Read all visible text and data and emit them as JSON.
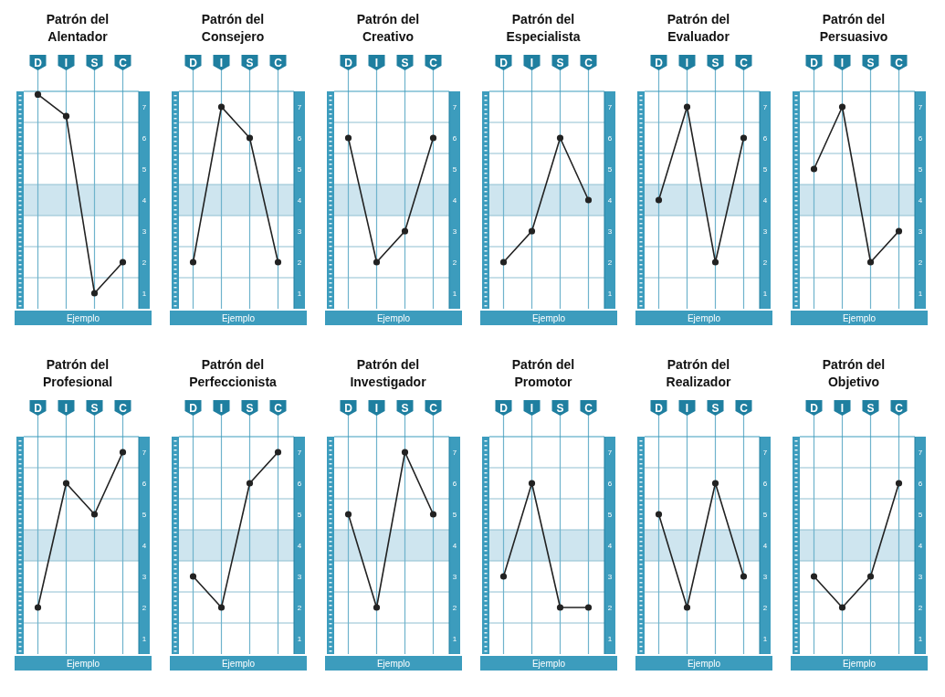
{
  "chart_data": [
    {
      "type": "line",
      "title": "Patrón del Alentador",
      "xlabel": "Ejemplo",
      "categories": [
        "D",
        "I",
        "S",
        "C"
      ],
      "series": [
        {
          "color": "#222222",
          "values": [
            7.4,
            6.7,
            1.0,
            2.0
          ]
        }
      ],
      "ylim": [
        0.5,
        7.5
      ],
      "yticks": [
        1,
        2,
        3,
        4,
        5,
        6,
        7,
        {
          "value": 1.5,
          "label": null
        },
        {
          "value": 2.5,
          "label": null
        },
        {
          "value": 3.5,
          "label": null
        },
        {
          "value": 4.5,
          "label": null
        },
        {
          "value": 5.5,
          "label": null
        },
        {
          "value": 6.5,
          "label": null
        }
      ],
      "bands": [
        {
          "axis": "y",
          "from": 3.5,
          "to": 4.5,
          "color": "#c6e1ec"
        }
      ],
      "grid": true,
      "marker": "circle",
      "line_style": "solid"
    },
    {
      "type": "line",
      "title": "Patrón del Consejero",
      "xlabel": "Ejemplo",
      "categories": [
        "D",
        "I",
        "S",
        "C"
      ],
      "series": [
        {
          "color": "#222222",
          "values": [
            2.0,
            7.0,
            6.0,
            2.0
          ]
        }
      ],
      "ylim": [
        0.5,
        7.5
      ],
      "yticks": [
        1,
        2,
        3,
        4,
        5,
        6,
        7,
        {
          "value": 1.5,
          "label": null
        },
        {
          "value": 2.5,
          "label": null
        },
        {
          "value": 3.5,
          "label": null
        },
        {
          "value": 4.5,
          "label": null
        },
        {
          "value": 5.5,
          "label": null
        },
        {
          "value": 6.5,
          "label": null
        }
      ],
      "bands": [
        {
          "axis": "y",
          "from": 3.5,
          "to": 4.5,
          "color": "#c6e1ec"
        }
      ],
      "grid": true,
      "marker": "circle",
      "line_style": "solid"
    },
    {
      "type": "line",
      "title": "Patrón del Creativo",
      "xlabel": "Ejemplo",
      "categories": [
        "D",
        "I",
        "S",
        "C"
      ],
      "series": [
        {
          "color": "#222222",
          "values": [
            6.0,
            2.0,
            3.0,
            6.0
          ]
        }
      ],
      "ylim": [
        0.5,
        7.5
      ],
      "yticks": [
        1,
        2,
        3,
        4,
        5,
        6,
        7,
        {
          "value": 1.5,
          "label": null
        },
        {
          "value": 2.5,
          "label": null
        },
        {
          "value": 3.5,
          "label": null
        },
        {
          "value": 4.5,
          "label": null
        },
        {
          "value": 5.5,
          "label": null
        },
        {
          "value": 6.5,
          "label": null
        }
      ],
      "bands": [
        {
          "axis": "y",
          "from": 3.5,
          "to": 4.5,
          "color": "#c6e1ec"
        }
      ],
      "grid": true,
      "marker": "circle",
      "line_style": "solid"
    },
    {
      "type": "line",
      "title": "Patrón del Especialista",
      "xlabel": "Ejemplo",
      "categories": [
        "D",
        "I",
        "S",
        "C"
      ],
      "series": [
        {
          "color": "#222222",
          "values": [
            2.0,
            3.0,
            6.0,
            4.0
          ]
        }
      ],
      "ylim": [
        0.5,
        7.5
      ],
      "yticks": [
        1,
        2,
        3,
        4,
        5,
        6,
        7,
        {
          "value": 1.5,
          "label": null
        },
        {
          "value": 2.5,
          "label": null
        },
        {
          "value": 3.5,
          "label": null
        },
        {
          "value": 4.5,
          "label": null
        },
        {
          "value": 5.5,
          "label": null
        },
        {
          "value": 6.5,
          "label": null
        }
      ],
      "bands": [
        {
          "axis": "y",
          "from": 3.5,
          "to": 4.5,
          "color": "#c6e1ec"
        }
      ],
      "grid": true,
      "marker": "circle",
      "line_style": "solid"
    },
    {
      "type": "line",
      "title": "Patrón del Evaluador",
      "xlabel": "Ejemplo",
      "categories": [
        "D",
        "I",
        "S",
        "C"
      ],
      "series": [
        {
          "color": "#222222",
          "values": [
            4.0,
            7.0,
            2.0,
            6.0
          ]
        }
      ],
      "ylim": [
        0.5,
        7.5
      ],
      "yticks": [
        1,
        2,
        3,
        4,
        5,
        6,
        7,
        {
          "value": 1.5,
          "label": null
        },
        {
          "value": 2.5,
          "label": null
        },
        {
          "value": 3.5,
          "label": null
        },
        {
          "value": 4.5,
          "label": null
        },
        {
          "value": 5.5,
          "label": null
        },
        {
          "value": 6.5,
          "label": null
        }
      ],
      "bands": [
        {
          "axis": "y",
          "from": 3.5,
          "to": 4.5,
          "color": "#c6e1ec"
        }
      ],
      "grid": true,
      "marker": "circle",
      "line_style": "solid"
    },
    {
      "type": "line",
      "title": "Patrón del Persuasivo",
      "xlabel": "Ejemplo",
      "categories": [
        "D",
        "I",
        "S",
        "C"
      ],
      "series": [
        {
          "color": "#222222",
          "values": [
            5.0,
            7.0,
            2.0,
            3.0
          ]
        }
      ],
      "ylim": [
        0.5,
        7.5
      ],
      "yticks": [
        1,
        2,
        3,
        4,
        5,
        6,
        7,
        {
          "value": 1.5,
          "label": null
        },
        {
          "value": 2.5,
          "label": null
        },
        {
          "value": 3.5,
          "label": null
        },
        {
          "value": 4.5,
          "label": null
        },
        {
          "value": 5.5,
          "label": null
        },
        {
          "value": 6.5,
          "label": null
        }
      ],
      "bands": [
        {
          "axis": "y",
          "from": 3.5,
          "to": 4.5,
          "color": "#c6e1ec"
        }
      ],
      "grid": true,
      "marker": "circle",
      "line_style": "solid"
    },
    {
      "type": "line",
      "title": "Patrón del Profesional",
      "xlabel": "Ejemplo",
      "categories": [
        "D",
        "I",
        "S",
        "C"
      ],
      "series": [
        {
          "color": "#222222",
          "values": [
            2.0,
            6.0,
            5.0,
            7.0
          ]
        }
      ],
      "ylim": [
        0.5,
        7.5
      ],
      "yticks": [
        1,
        2,
        3,
        4,
        5,
        6,
        7,
        {
          "value": 1.5,
          "label": null
        },
        {
          "value": 2.5,
          "label": null
        },
        {
          "value": 3.5,
          "label": null
        },
        {
          "value": 4.5,
          "label": null
        },
        {
          "value": 5.5,
          "label": null
        },
        {
          "value": 6.5,
          "label": null
        }
      ],
      "bands": [
        {
          "axis": "y",
          "from": 3.5,
          "to": 4.5,
          "color": "#c6e1ec"
        }
      ],
      "grid": true,
      "marker": "circle",
      "line_style": "solid"
    },
    {
      "type": "line",
      "title": "Patrón del Perfeccionista",
      "xlabel": "Ejemplo",
      "categories": [
        "D",
        "I",
        "S",
        "C"
      ],
      "series": [
        {
          "color": "#222222",
          "values": [
            3.0,
            2.0,
            6.0,
            7.0
          ]
        }
      ],
      "ylim": [
        0.5,
        7.5
      ],
      "yticks": [
        1,
        2,
        3,
        4,
        5,
        6,
        7,
        {
          "value": 1.5,
          "label": null
        },
        {
          "value": 2.5,
          "label": null
        },
        {
          "value": 3.5,
          "label": null
        },
        {
          "value": 4.5,
          "label": null
        },
        {
          "value": 5.5,
          "label": null
        },
        {
          "value": 6.5,
          "label": null
        }
      ],
      "bands": [
        {
          "axis": "y",
          "from": 3.5,
          "to": 4.5,
          "color": "#c6e1ec"
        }
      ],
      "grid": true,
      "marker": "circle",
      "line_style": "solid"
    },
    {
      "type": "line",
      "title": "Patrón del Investigador",
      "xlabel": "Ejemplo",
      "categories": [
        "D",
        "I",
        "S",
        "C"
      ],
      "series": [
        {
          "color": "#222222",
          "values": [
            5.0,
            2.0,
            7.0,
            5.0
          ]
        }
      ],
      "ylim": [
        0.5,
        7.5
      ],
      "yticks": [
        1,
        2,
        3,
        4,
        5,
        6,
        7,
        {
          "value": 1.5,
          "label": null
        },
        {
          "value": 2.5,
          "label": null
        },
        {
          "value": 3.5,
          "label": null
        },
        {
          "value": 4.5,
          "label": null
        },
        {
          "value": 5.5,
          "label": null
        },
        {
          "value": 6.5,
          "label": null
        }
      ],
      "bands": [
        {
          "axis": "y",
          "from": 3.5,
          "to": 4.5,
          "color": "#c6e1ec"
        }
      ],
      "grid": true,
      "marker": "circle",
      "line_style": "solid"
    },
    {
      "type": "line",
      "title": "Patrón del Promotor",
      "xlabel": "Ejemplo",
      "categories": [
        "D",
        "I",
        "S",
        "C"
      ],
      "series": [
        {
          "color": "#222222",
          "values": [
            3.0,
            6.0,
            2.0,
            2.0
          ]
        }
      ],
      "ylim": [
        0.5,
        7.5
      ],
      "yticks": [
        1,
        2,
        3,
        4,
        5,
        6,
        7,
        {
          "value": 1.5,
          "label": null
        },
        {
          "value": 2.5,
          "label": null
        },
        {
          "value": 3.5,
          "label": null
        },
        {
          "value": 4.5,
          "label": null
        },
        {
          "value": 5.5,
          "label": null
        },
        {
          "value": 6.5,
          "label": null
        }
      ],
      "bands": [
        {
          "axis": "y",
          "from": 3.5,
          "to": 4.5,
          "color": "#c6e1ec"
        }
      ],
      "grid": true,
      "marker": "circle",
      "line_style": "solid"
    },
    {
      "type": "line",
      "title": "Patrón del Realizador",
      "xlabel": "Ejemplo",
      "categories": [
        "D",
        "I",
        "S",
        "C"
      ],
      "series": [
        {
          "color": "#222222",
          "values": [
            5.0,
            2.0,
            6.0,
            3.0
          ]
        }
      ],
      "ylim": [
        0.5,
        7.5
      ],
      "yticks": [
        1,
        2,
        3,
        4,
        5,
        6,
        7,
        {
          "value": 1.5,
          "label": null
        },
        {
          "value": 2.5,
          "label": null
        },
        {
          "value": 3.5,
          "label": null
        },
        {
          "value": 4.5,
          "label": null
        },
        {
          "value": 5.5,
          "label": null
        },
        {
          "value": 6.5,
          "label": null
        }
      ],
      "bands": [
        {
          "axis": "y",
          "from": 3.5,
          "to": 4.5,
          "color": "#c6e1ec"
        }
      ],
      "grid": true,
      "marker": "circle",
      "line_style": "solid"
    },
    {
      "type": "line",
      "title": "Patrón del Objetivo",
      "xlabel": "Ejemplo",
      "categories": [
        "D",
        "I",
        "S",
        "C"
      ],
      "series": [
        {
          "color": "#222222",
          "values": [
            3.0,
            2.0,
            3.0,
            6.0
          ]
        }
      ],
      "ylim": [
        0.5,
        7.5
      ],
      "yticks": [
        1,
        2,
        3,
        4,
        5,
        6,
        7,
        {
          "value": 1.5,
          "label": null
        },
        {
          "value": 2.5,
          "label": null
        },
        {
          "value": 3.5,
          "label": null
        },
        {
          "value": 4.5,
          "label": null
        },
        {
          "value": 5.5,
          "label": null
        },
        {
          "value": 6.5,
          "label": null
        }
      ],
      "bands": [
        {
          "axis": "y",
          "from": 3.5,
          "to": 4.5,
          "color": "#c6e1ec"
        }
      ],
      "grid": true,
      "marker": "circle",
      "line_style": "solid"
    }
  ]
}
